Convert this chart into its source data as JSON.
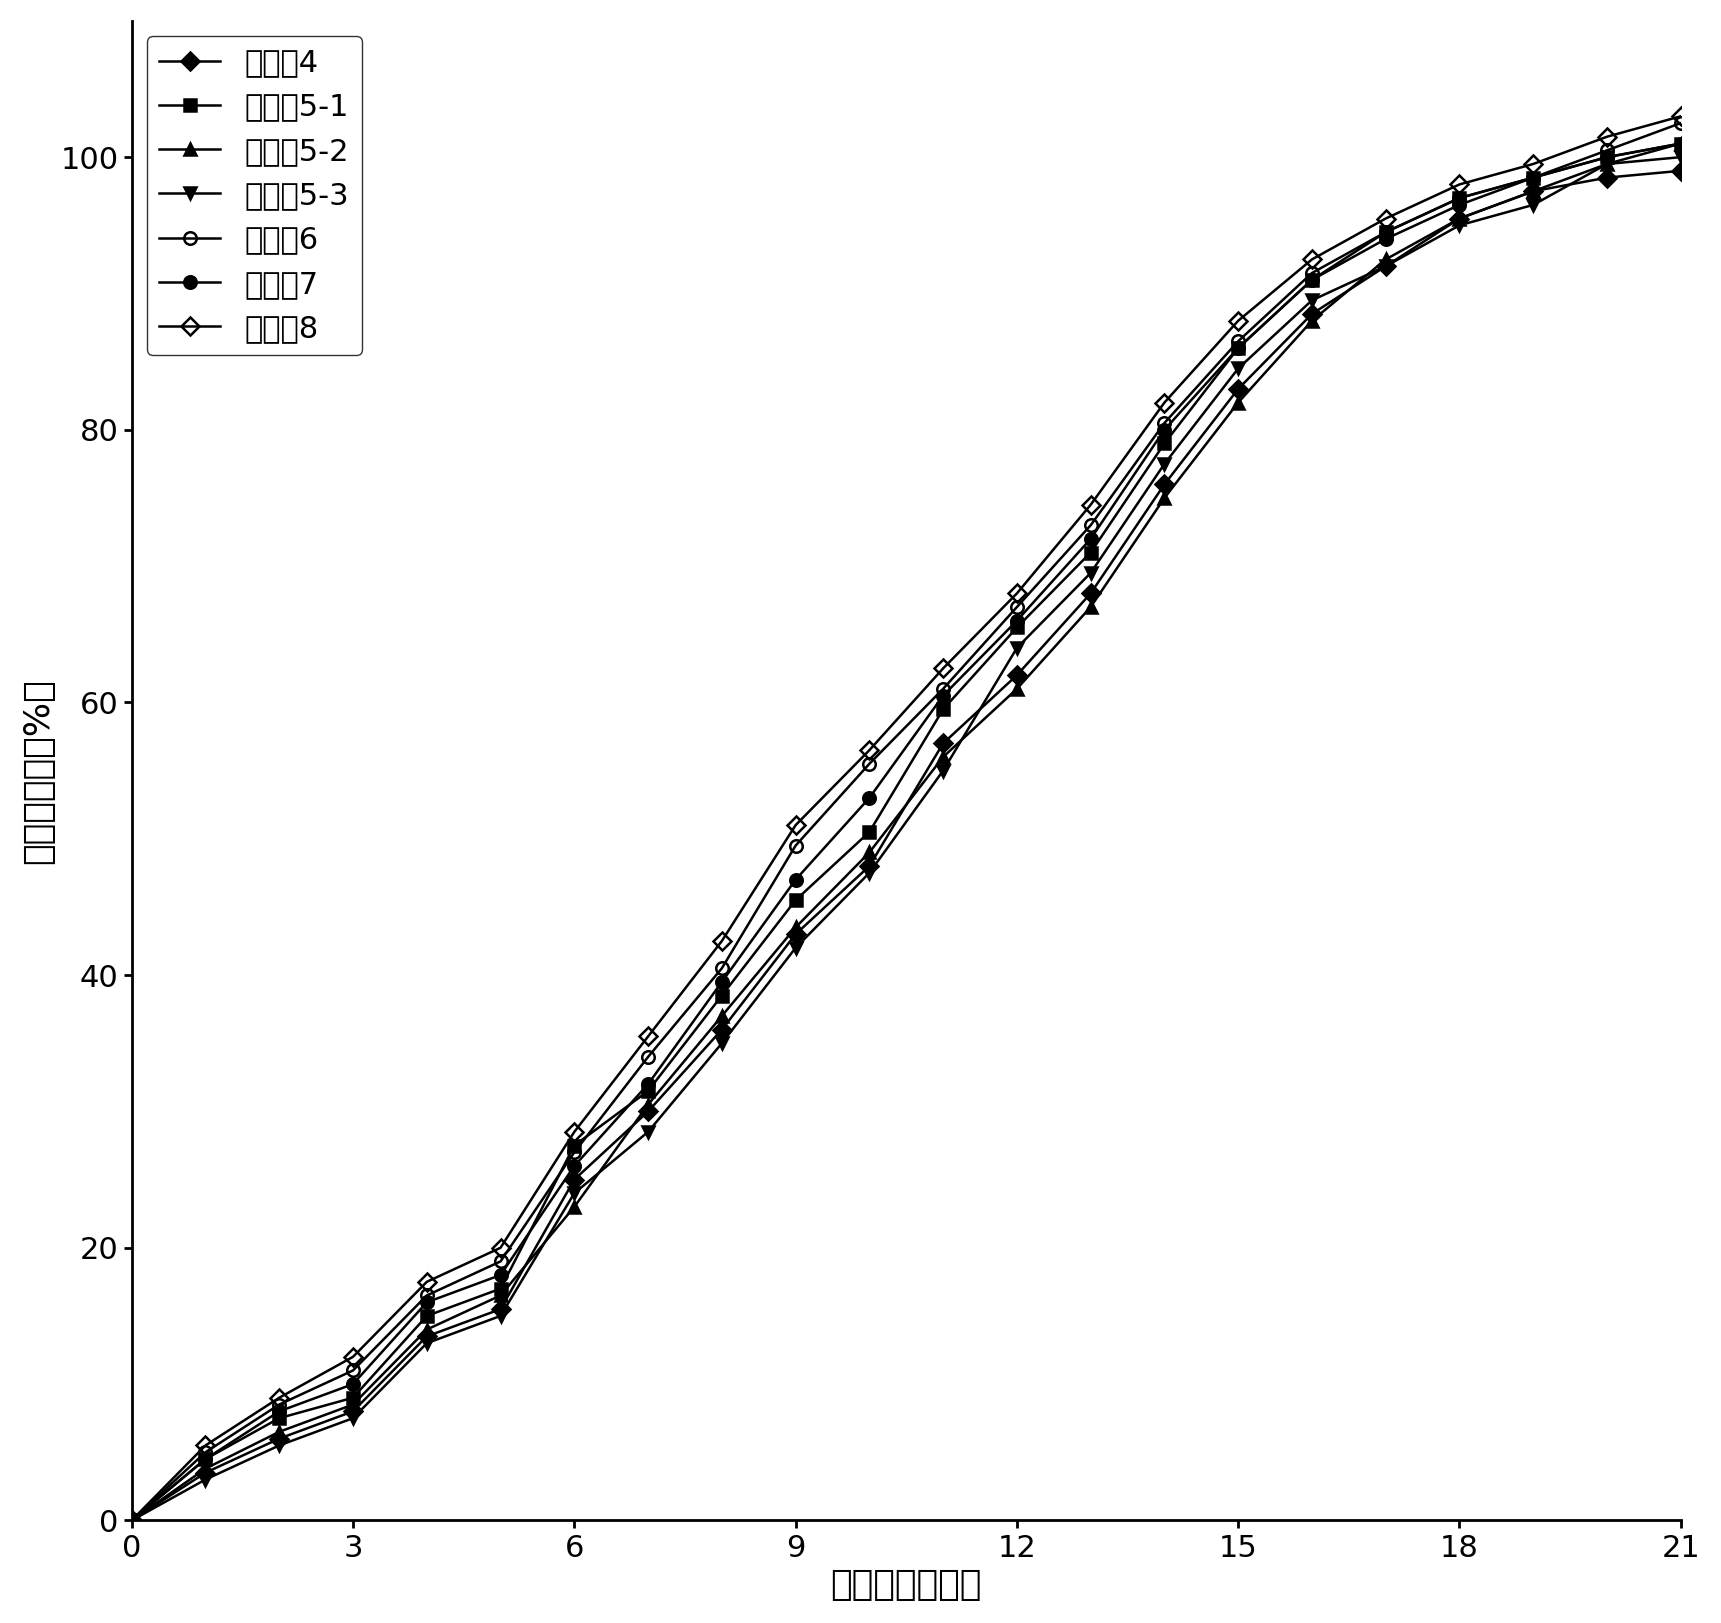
{
  "series": [
    {
      "label": "实施例4",
      "marker": "D",
      "fillstyle": "full",
      "color": "#000000",
      "x": [
        0,
        1,
        2,
        3,
        4,
        5,
        6,
        7,
        8,
        9,
        10,
        11,
        12,
        13,
        14,
        15,
        16,
        17,
        18,
        19,
        20,
        21
      ],
      "y": [
        0,
        3.5,
        6.0,
        8.0,
        13.5,
        15.5,
        25.0,
        30.0,
        36.0,
        43.0,
        48.0,
        57.0,
        62.0,
        68.0,
        76.0,
        83.0,
        88.5,
        92.0,
        95.5,
        97.5,
        98.5,
        99.0
      ]
    },
    {
      "label": "实施例5-1",
      "marker": "s",
      "fillstyle": "full",
      "color": "#000000",
      "x": [
        0,
        1,
        2,
        3,
        4,
        5,
        6,
        7,
        8,
        9,
        10,
        11,
        12,
        13,
        14,
        15,
        16,
        17,
        18,
        19,
        20,
        21
      ],
      "y": [
        0,
        4.5,
        7.5,
        9.0,
        15.0,
        17.0,
        27.5,
        31.5,
        38.5,
        45.5,
        50.5,
        59.5,
        65.5,
        71.0,
        79.0,
        86.0,
        91.0,
        94.5,
        97.0,
        98.5,
        100.0,
        101.0
      ]
    },
    {
      "label": "实施例5-2",
      "marker": "^",
      "fillstyle": "full",
      "color": "#000000",
      "x": [
        0,
        1,
        2,
        3,
        4,
        5,
        6,
        7,
        8,
        9,
        10,
        11,
        12,
        13,
        14,
        15,
        16,
        17,
        18,
        19,
        20,
        21
      ],
      "y": [
        0,
        3.8,
        6.5,
        8.5,
        14.0,
        16.5,
        23.0,
        30.5,
        37.0,
        43.5,
        49.0,
        56.0,
        61.0,
        67.0,
        75.0,
        82.0,
        88.0,
        92.5,
        95.5,
        97.5,
        99.5,
        101.0
      ]
    },
    {
      "label": "实施例5-3",
      "marker": "v",
      "fillstyle": "full",
      "color": "#000000",
      "x": [
        0,
        1,
        2,
        3,
        4,
        5,
        6,
        7,
        8,
        9,
        10,
        11,
        12,
        13,
        14,
        15,
        16,
        17,
        18,
        19,
        20,
        21
      ],
      "y": [
        0,
        3.0,
        5.5,
        7.5,
        13.0,
        15.0,
        24.0,
        28.5,
        35.0,
        42.0,
        47.5,
        55.0,
        64.0,
        69.5,
        77.5,
        84.5,
        89.5,
        92.0,
        95.0,
        96.5,
        99.5,
        100.0
      ]
    },
    {
      "label": "实施例6",
      "marker": "o",
      "fillstyle": "none",
      "color": "#000000",
      "x": [
        0,
        1,
        2,
        3,
        4,
        5,
        6,
        7,
        8,
        9,
        10,
        11,
        12,
        13,
        14,
        15,
        16,
        17,
        18,
        19,
        20,
        21
      ],
      "y": [
        0,
        5.0,
        8.5,
        11.0,
        16.5,
        19.0,
        27.0,
        34.0,
        40.5,
        49.5,
        55.5,
        61.0,
        67.0,
        73.0,
        80.5,
        86.5,
        91.5,
        94.5,
        97.0,
        98.5,
        100.5,
        102.5
      ]
    },
    {
      "label": "实施例7",
      "marker": "o",
      "fillstyle": "full",
      "color": "#000000",
      "x": [
        0,
        1,
        2,
        3,
        4,
        5,
        6,
        7,
        8,
        9,
        10,
        11,
        12,
        13,
        14,
        15,
        16,
        17,
        18,
        19,
        20,
        21
      ],
      "y": [
        0,
        4.5,
        8.0,
        10.0,
        16.0,
        18.0,
        26.0,
        32.0,
        39.5,
        47.0,
        53.0,
        60.5,
        66.0,
        72.0,
        80.0,
        86.0,
        91.0,
        94.0,
        96.5,
        98.5,
        100.0,
        101.0
      ]
    },
    {
      "label": "实施例8",
      "marker": "D",
      "fillstyle": "none",
      "color": "#000000",
      "x": [
        0,
        1,
        2,
        3,
        4,
        5,
        6,
        7,
        8,
        9,
        10,
        11,
        12,
        13,
        14,
        15,
        16,
        17,
        18,
        19,
        20,
        21
      ],
      "y": [
        0,
        5.5,
        9.0,
        12.0,
        17.5,
        20.0,
        28.5,
        35.5,
        42.5,
        51.0,
        56.5,
        62.5,
        68.0,
        74.5,
        82.0,
        88.0,
        92.5,
        95.5,
        98.0,
        99.5,
        101.5,
        103.0
      ]
    }
  ],
  "xlabel": "保温时间（天）",
  "ylabel": "累积释放量（%）",
  "xlim": [
    0,
    21
  ],
  "ylim": [
    0,
    110
  ],
  "xticks": [
    0,
    3,
    6,
    9,
    12,
    15,
    18,
    21
  ],
  "yticks": [
    0,
    20,
    40,
    60,
    80,
    100
  ],
  "background_color": "#ffffff",
  "line_color": "#000000",
  "markersize": 9,
  "linewidth": 1.8,
  "legend_loc": "upper left",
  "legend_fontsize": 22,
  "axis_fontsize": 26,
  "tick_fontsize": 22
}
